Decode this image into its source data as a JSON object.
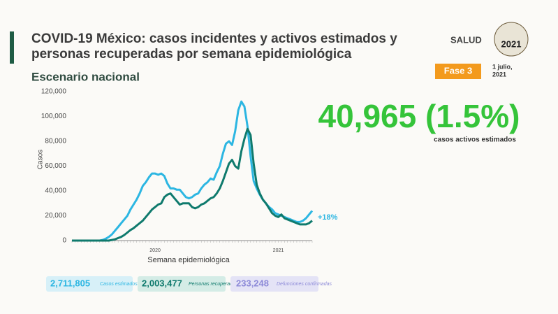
{
  "header": {
    "title_lines": [
      "COVID-19 México: casos incidentes y activos estimados y",
      "personas recuperadas por semana epidemiológica"
    ],
    "subtitle": "Escenario nacional",
    "logo": "SALUD",
    "emblem": "2021",
    "phase": "Fase 3",
    "date_lines": [
      "1 julio,",
      "2021"
    ]
  },
  "highlight": {
    "value": "40,965 (1.5%)",
    "caption": "casos activos estimados"
  },
  "chart_data": {
    "type": "line",
    "ylabel": "Casos",
    "xlabel": "Semana epidemiológica",
    "annotation": "+18%",
    "categories": [
      null,
      null,
      null,
      null,
      null,
      null,
      null,
      null,
      null,
      null,
      null,
      null,
      null,
      null,
      null,
      null,
      null,
      null,
      null,
      null,
      null,
      null,
      null,
      null,
      null,
      null,
      null,
      "2020",
      null,
      null,
      null,
      null,
      null,
      null,
      null,
      null,
      null,
      null,
      null,
      null,
      null,
      null,
      null,
      null,
      null,
      null,
      null,
      null,
      null,
      null,
      null,
      null,
      null,
      null,
      null,
      null,
      null,
      null,
      null,
      null,
      null,
      null,
      null,
      null,
      null,
      null,
      null,
      "2021",
      null,
      null,
      null,
      null,
      null,
      null,
      null,
      null,
      null,
      null,
      null
    ],
    "series": [
      {
        "color": "#2cb6e2",
        "values": [
          0,
          0,
          0,
          0,
          0,
          0,
          0,
          0,
          0,
          0,
          500,
          1500,
          3000,
          5000,
          8000,
          11000,
          14000,
          17000,
          20000,
          25000,
          29000,
          33000,
          38000,
          44000,
          47000,
          51000,
          54000,
          54000,
          53000,
          54000,
          52000,
          46000,
          42000,
          42000,
          41000,
          41000,
          38000,
          35000,
          34000,
          35000,
          37000,
          38000,
          42000,
          45000,
          47000,
          50000,
          49000,
          55000,
          60000,
          70000,
          78000,
          80000,
          77000,
          88000,
          105000,
          112000,
          108000,
          92000,
          68000,
          48000,
          42000,
          37000,
          33000,
          30000,
          27000,
          25000,
          22000,
          21000,
          20000,
          19000,
          18000,
          17000,
          16000,
          15000,
          15000,
          16000,
          18000,
          21000,
          24000
        ]
      },
      {
        "color": "#0f7a6d",
        "values": [
          0,
          0,
          0,
          0,
          0,
          0,
          0,
          0,
          0,
          0,
          0,
          0,
          0,
          500,
          1000,
          2000,
          3000,
          4500,
          6500,
          8500,
          10000,
          12000,
          14000,
          16000,
          19000,
          22000,
          25000,
          27000,
          29000,
          30000,
          35000,
          37000,
          38000,
          35000,
          32000,
          29000,
          30000,
          30000,
          30000,
          27000,
          26000,
          27000,
          29000,
          30000,
          32000,
          34000,
          35000,
          38000,
          42000,
          48000,
          55000,
          62000,
          65000,
          60000,
          58000,
          72000,
          82000,
          90000,
          85000,
          62000,
          45000,
          38000,
          33000,
          30000,
          26000,
          22000,
          20000,
          19000,
          21000,
          18000,
          17000,
          16000,
          15000,
          14000,
          13000,
          13000,
          13000,
          14000,
          16000
        ]
      }
    ],
    "ylim": [
      0,
      120000
    ],
    "yticks": [
      0,
      {
        "value": 20000,
        "label": "20,000"
      },
      {
        "value": 40000,
        "label": "40,000"
      },
      {
        "value": 60000,
        "label": "60,000"
      },
      {
        "value": 80000,
        "label": "80,000"
      },
      {
        "value": 100000,
        "label": "100,000"
      },
      {
        "value": 120000,
        "label": "120,000"
      }
    ],
    "grid": false
  },
  "summary": [
    {
      "value": "2,711,805",
      "label": "Casos estimados"
    },
    {
      "value": "2,003,477",
      "label": "Personas recuperadas"
    },
    {
      "value": "233,248",
      "label": "Defunciones confirmadas"
    }
  ]
}
